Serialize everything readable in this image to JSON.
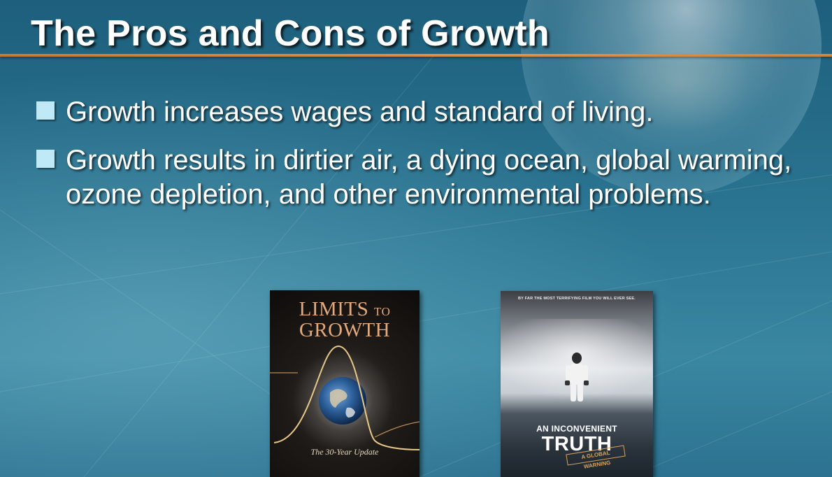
{
  "slide": {
    "title": "The Pros and Cons of Growth",
    "bullets": [
      "Growth increases wages and standard of living.",
      "Growth results in dirtier air, a dying ocean, global warming, ozone depletion, and other environmental problems."
    ]
  },
  "book": {
    "title_line1_big": "LIMITS",
    "title_line1_small": "TO",
    "title_line2": "GROWTH",
    "subtitle": "The 30-Year Update"
  },
  "poster": {
    "tagline": "BY FAR THE MOST TERRIFYING FILM YOU WILL EVER SEE.",
    "title_line1": "AN INCONVENIENT",
    "title_line2": "TRUTH",
    "stamp": "A GLOBAL WARNING"
  },
  "colors": {
    "background": "#2b7592",
    "title_rule": "#d9924f",
    "bullet_marker": "#bfe9f4",
    "book_title": "#e2a97c"
  }
}
